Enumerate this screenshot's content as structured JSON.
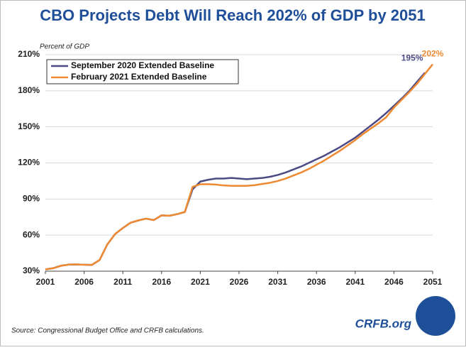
{
  "chart_data": {
    "type": "line",
    "title": "CBO Projects Debt Will Reach 202% of GDP by 2051",
    "y_label": "Percent of GDP",
    "source": "Source: Congressional Budget Office and CRFB calculations.",
    "logo": "CRFB.org",
    "x": [
      2001,
      2002,
      2003,
      2004,
      2005,
      2006,
      2007,
      2008,
      2009,
      2010,
      2011,
      2012,
      2013,
      2014,
      2015,
      2016,
      2017,
      2018,
      2019,
      2020,
      2021,
      2022,
      2023,
      2024,
      2025,
      2026,
      2027,
      2028,
      2029,
      2030,
      2031,
      2032,
      2033,
      2034,
      2035,
      2036,
      2037,
      2038,
      2039,
      2040,
      2041,
      2042,
      2043,
      2044,
      2045,
      2046,
      2047,
      2048,
      2049,
      2050,
      2051
    ],
    "series": [
      {
        "name": "September 2020 Extended Baseline",
        "color": "#4b4a84",
        "values": [
          31.5,
          32.5,
          34.5,
          35.5,
          35.6,
          35.4,
          35.2,
          39.3,
          52.3,
          60.9,
          65.9,
          70.3,
          72.2,
          73.7,
          72.5,
          76.4,
          76.1,
          77.4,
          79.2,
          98,
          104.5,
          106,
          107,
          107,
          107.5,
          107,
          106.5,
          107,
          107.5,
          108.5,
          110,
          112,
          114.5,
          117,
          120,
          123,
          126,
          129.5,
          133,
          137,
          141,
          146,
          151,
          156,
          161.5,
          167.5,
          173.5,
          180,
          187.5,
          195,
          null
        ],
        "value_labels": [
          null,
          null,
          null,
          null,
          null,
          null,
          null,
          null,
          null,
          null,
          null,
          null,
          null,
          null,
          null,
          null,
          null,
          null,
          null,
          null,
          null,
          null,
          null,
          null,
          null,
          null,
          null,
          null,
          null,
          null,
          null,
          null,
          null,
          null,
          null,
          null,
          null,
          null,
          null,
          null,
          null,
          null,
          null,
          null,
          null,
          null,
          null,
          null,
          null,
          "195%",
          null
        ]
      },
      {
        "name": "February 2021 Extended Baseline",
        "color": "#ee8a32",
        "values": [
          31.5,
          32.5,
          34.5,
          35.5,
          35.6,
          35.4,
          35.2,
          39.3,
          52.3,
          60.9,
          65.9,
          70.3,
          72.2,
          73.7,
          72.5,
          76.4,
          76.1,
          77.4,
          79.2,
          100.1,
          102.3,
          102.4,
          102,
          101.3,
          101,
          101,
          101,
          101.5,
          102.5,
          103.5,
          105,
          107,
          109.5,
          112,
          115,
          118.5,
          122,
          126,
          130,
          134.5,
          139,
          144,
          148.5,
          153,
          158,
          166,
          172.5,
          179,
          186,
          194,
          202
        ],
        "value_labels": [
          null,
          null,
          null,
          null,
          null,
          null,
          null,
          null,
          null,
          null,
          null,
          null,
          null,
          null,
          null,
          null,
          null,
          null,
          null,
          null,
          null,
          null,
          null,
          null,
          null,
          null,
          null,
          null,
          null,
          null,
          null,
          null,
          null,
          null,
          null,
          null,
          null,
          null,
          null,
          null,
          null,
          null,
          null,
          null,
          null,
          null,
          null,
          null,
          null,
          null,
          "202%"
        ]
      }
    ],
    "xlim": [
      2001,
      2051
    ],
    "xticks": [
      2001,
      2006,
      2011,
      2016,
      2021,
      2026,
      2031,
      2036,
      2041,
      2046,
      2051
    ],
    "ylim": [
      30,
      210
    ],
    "yticks": [
      {
        "value": 30,
        "label": "30%"
      },
      {
        "value": 60,
        "label": "60%"
      },
      {
        "value": 90,
        "label": "90%"
      },
      {
        "value": 120,
        "label": "120%"
      },
      {
        "value": 150,
        "label": "150%"
      },
      {
        "value": 180,
        "label": "180%"
      },
      {
        "value": 210,
        "label": "210%"
      }
    ],
    "grid": true,
    "legend": "upper left"
  }
}
